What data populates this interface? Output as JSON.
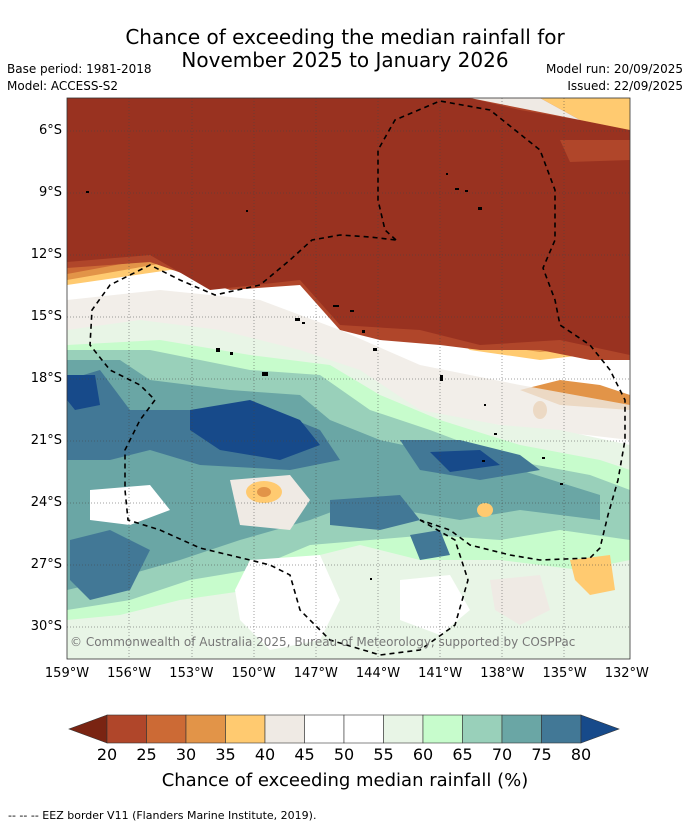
{
  "title_line1": "Chance of exceeding the median rainfall for",
  "title_line2": "November 2025 to January 2026",
  "base_period": "Base period: 1981-2018",
  "model": "Model: ACCESS-S2",
  "model_run": "Model run: 20/09/2025",
  "issued": "Issued: 22/09/2025",
  "copyright": "© Commonwealth of Australia 2025, Bureau of Meteorology, supported by COSPPac",
  "lat_ticks": [
    "6°S",
    "9°S",
    "12°S",
    "15°S",
    "18°S",
    "21°S",
    "24°S",
    "27°S",
    "30°S"
  ],
  "lon_ticks": [
    "159°W",
    "156°W",
    "153°W",
    "150°W",
    "147°W",
    "144°W",
    "141°W",
    "138°W",
    "135°W",
    "132°W"
  ],
  "colorbar": {
    "labels": [
      "20",
      "25",
      "30",
      "35",
      "40",
      "45",
      "50",
      "55",
      "60",
      "65",
      "70",
      "75",
      "80"
    ],
    "colors": [
      "#7a2412",
      "#b0462a",
      "#cc6a35",
      "#e29448",
      "#ffca70",
      "#efeae4",
      "#ffffff",
      "#ffffff",
      "#e8f5e6",
      "#c7fccc",
      "#99d0ba",
      "#6aa6a5",
      "#427896",
      "#174a8a"
    ],
    "title": "Chance of exceeding median rainfall (%)"
  },
  "footer": "--  --  -- EEZ border V11 (Flanders Marine Institute, 2019)."
}
